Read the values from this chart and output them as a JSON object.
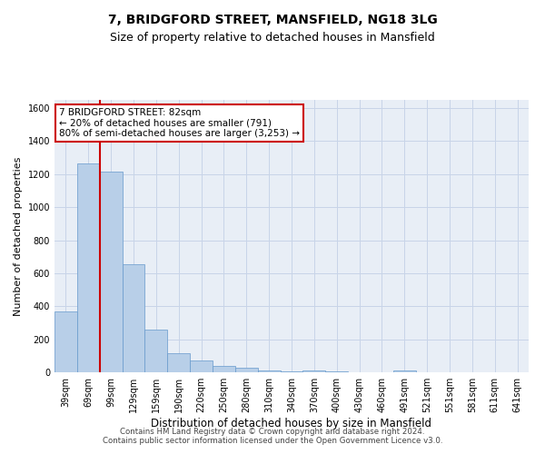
{
  "title": "7, BRIDGFORD STREET, MANSFIELD, NG18 3LG",
  "subtitle": "Size of property relative to detached houses in Mansfield",
  "xlabel": "Distribution of detached houses by size in Mansfield",
  "ylabel": "Number of detached properties",
  "categories": [
    "39sqm",
    "69sqm",
    "99sqm",
    "129sqm",
    "159sqm",
    "190sqm",
    "220sqm",
    "250sqm",
    "280sqm",
    "310sqm",
    "340sqm",
    "370sqm",
    "400sqm",
    "430sqm",
    "460sqm",
    "491sqm",
    "521sqm",
    "551sqm",
    "581sqm",
    "611sqm",
    "641sqm"
  ],
  "values": [
    370,
    1265,
    1215,
    655,
    260,
    115,
    70,
    40,
    28,
    13,
    5,
    13,
    5,
    0,
    0,
    13,
    0,
    0,
    0,
    0,
    0
  ],
  "bar_color": "#b8cfe8",
  "bar_edge_color": "#6699cc",
  "vline_x": 1.5,
  "vline_color": "#cc0000",
  "annotation_line1": "7 BRIDGFORD STREET: 82sqm",
  "annotation_line2": "← 20% of detached houses are smaller (791)",
  "annotation_line3": "80% of semi-detached houses are larger (3,253) →",
  "annotation_box_facecolor": "#ffffff",
  "annotation_box_edgecolor": "#cc0000",
  "ylim": [
    0,
    1650
  ],
  "yticks": [
    0,
    200,
    400,
    600,
    800,
    1000,
    1200,
    1400,
    1600
  ],
  "grid_color": "#c8d4e8",
  "bg_color": "#e8eef6",
  "title_fontsize": 10,
  "subtitle_fontsize": 9,
  "xlabel_fontsize": 8.5,
  "ylabel_fontsize": 8,
  "tick_fontsize": 7,
  "annotation_fontsize": 7.5,
  "footer": "Contains HM Land Registry data © Crown copyright and database right 2024.\nContains public sector information licensed under the Open Government Licence v3.0.",
  "footer_fontsize": 6.2
}
